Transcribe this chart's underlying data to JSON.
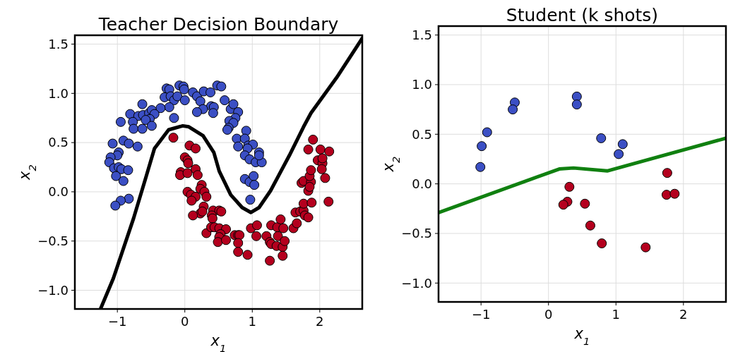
{
  "chart_data": [
    {
      "type": "scatter",
      "title": "Teacher Decision Boundary",
      "xlabel": "x$_{1}$",
      "ylabel": "x$_{2}$",
      "xlim": [
        -1.63,
        2.63
      ],
      "ylim": [
        -1.19,
        1.59
      ],
      "xticks": [
        {
          "value": -1,
          "label": "−1"
        },
        0,
        1,
        2
      ],
      "yticks": [
        {
          "value": -1,
          "label": "−1.0"
        },
        {
          "value": -0.5,
          "label": "−0.5"
        },
        {
          "value": 0,
          "label": "0.0"
        },
        {
          "value": 0.5,
          "label": "0.5"
        },
        {
          "value": 1,
          "label": "1.0"
        },
        {
          "value": 1.5,
          "label": "1.5"
        }
      ],
      "grid": true,
      "series": [
        {
          "marker": "circle",
          "color": "#3b4fc4",
          "x": [
            -0.27,
            -0.23,
            -0.08,
            -0.02,
            -0.01,
            -0.3,
            -0.21,
            -0.16,
            -0.11,
            0.0,
            0.12,
            0.18,
            0.23,
            0.28,
            0.38,
            0.48,
            0.54,
            0.39,
            0.43,
            0.42,
            0.27,
            0.18,
            -0.23,
            -0.36,
            -0.63,
            -0.81,
            -0.69,
            -0.62,
            -0.53,
            -0.49,
            -0.45,
            -0.52,
            -0.58,
            -0.77,
            -0.95,
            -0.76,
            -0.63,
            -0.49,
            -0.16,
            -1.07,
            -0.91,
            -0.83,
            -0.7,
            -0.98,
            -1.0,
            -1.1,
            -1.12,
            -1.05,
            -0.98,
            -0.94,
            -0.84,
            -1.02,
            -0.91,
            -0.83,
            -0.95,
            -1.03,
            0.59,
            0.68,
            0.72,
            0.79,
            0.75,
            0.66,
            0.72,
            0.65,
            0.63,
            0.91,
            0.77,
            0.89,
            0.79,
            0.94,
            1.01,
            0.93,
            0.89,
            0.96,
            1.05,
            1.14,
            1.1,
            1.1,
            0.89,
            0.96,
            1.02,
            1.03,
            0.97
          ],
          "values": [
            1.05,
            1.04,
            1.08,
            1.07,
            1.04,
            0.96,
            0.97,
            0.93,
            0.97,
            0.93,
            1.01,
            0.97,
            0.92,
            1.02,
            1.01,
            1.08,
            1.07,
            0.87,
            0.86,
            0.8,
            0.84,
            0.81,
            0.86,
            0.85,
            0.89,
            0.79,
            0.77,
            0.78,
            0.8,
            0.83,
            0.79,
            0.74,
            0.73,
            0.71,
            0.71,
            0.64,
            0.64,
            0.67,
            0.75,
            0.49,
            0.52,
            0.49,
            0.46,
            0.4,
            0.37,
            0.35,
            0.3,
            0.24,
            0.25,
            0.23,
            0.22,
            0.16,
            0.11,
            -0.07,
            -0.09,
            -0.14,
            0.93,
            0.84,
            0.89,
            0.81,
            0.75,
            0.72,
            0.7,
            0.65,
            0.63,
            0.62,
            0.54,
            0.54,
            0.46,
            0.47,
            0.48,
            0.44,
            0.37,
            0.33,
            0.3,
            0.3,
            0.4,
            0.37,
            0.13,
            0.1,
            0.16,
            0.07,
            -0.08
          ]
        },
        {
          "marker": "circle",
          "color": "#b4001e",
          "x": [
            -0.17,
            0.07,
            0.16,
            0.0,
            0.04,
            0.05,
            -0.06,
            -0.07,
            0.04,
            0.16,
            0.19,
            0.25,
            0.23,
            0.29,
            0.32,
            0.04,
            0.09,
            0.16,
            0.1,
            0.28,
            0.23,
            0.26,
            0.12,
            0.42,
            0.51,
            0.54,
            0.4,
            0.41,
            0.32,
            0.39,
            0.44,
            0.51,
            0.61,
            0.53,
            0.51,
            0.49,
            0.61,
            0.74,
            0.79,
            0.81,
            0.79,
            0.79,
            0.93,
            0.98,
            1.07,
            1.06,
            1.21,
            1.28,
            1.37,
            1.42,
            1.46,
            1.38,
            1.26,
            1.28,
            1.36,
            1.45,
            1.48,
            1.45,
            1.26,
            1.61,
            1.66,
            1.64,
            1.71,
            1.76,
            1.78,
            1.83,
            1.76,
            1.88,
            1.73,
            1.76,
            1.87,
            1.85,
            1.83,
            1.87,
            1.83,
            1.9,
            2.01,
            1.97,
            2.04,
            2.03,
            2.08,
            2.14,
            2.04,
            1.85,
            2.13
          ],
          "values": [
            0.55,
            0.47,
            0.44,
            0.35,
            0.32,
            0.29,
            0.2,
            0.17,
            0.19,
            0.23,
            0.17,
            0.07,
            0.03,
            0.0,
            -0.05,
            0.0,
            -0.03,
            -0.05,
            -0.09,
            -0.15,
            -0.22,
            -0.2,
            -0.24,
            -0.19,
            -0.19,
            -0.2,
            -0.24,
            -0.27,
            -0.42,
            -0.36,
            -0.36,
            -0.37,
            -0.38,
            -0.43,
            -0.46,
            -0.51,
            -0.49,
            -0.44,
            -0.44,
            -0.44,
            -0.52,
            -0.61,
            -0.64,
            -0.37,
            -0.34,
            -0.45,
            -0.45,
            -0.34,
            -0.36,
            -0.28,
            -0.37,
            -0.45,
            -0.51,
            -0.53,
            -0.55,
            -0.56,
            -0.5,
            -0.65,
            -0.7,
            -0.37,
            -0.32,
            -0.21,
            -0.2,
            -0.19,
            -0.24,
            -0.26,
            -0.12,
            -0.11,
            0.09,
            0.11,
            0.1,
            0.16,
            0.01,
            0.22,
            0.43,
            0.53,
            0.43,
            0.32,
            0.29,
            0.23,
            0.14,
            0.41,
            0.34,
            0.05,
            -0.1
          ]
        },
        {
          "type": "line",
          "color": "#000000",
          "x": [
            -1.25,
            -1.06,
            -0.76,
            -0.58,
            -0.45,
            -0.24,
            -0.03,
            0.06,
            0.27,
            0.43,
            0.51,
            0.68,
            0.85,
            0.98,
            1.1,
            1.27,
            1.55,
            1.76,
            1.87,
            2.25,
            2.63
          ],
          "values": [
            -1.19,
            -0.88,
            -0.27,
            0.14,
            0.44,
            0.63,
            0.67,
            0.66,
            0.57,
            0.4,
            0.21,
            -0.03,
            -0.16,
            -0.21,
            -0.16,
            0.01,
            0.37,
            0.66,
            0.8,
            1.16,
            1.56
          ]
        }
      ]
    },
    {
      "type": "scatter",
      "title": "Student (k shots)",
      "xlabel": "x$_{1}$",
      "ylabel": "x$_{2}$",
      "xlim": [
        -1.63,
        2.63
      ],
      "ylim": [
        -1.19,
        1.59
      ],
      "xticks": [
        {
          "value": -1,
          "label": "−1"
        },
        0,
        1,
        2
      ],
      "yticks": [
        {
          "value": -1,
          "label": "−1.0"
        },
        {
          "value": -0.5,
          "label": "−0.5"
        },
        {
          "value": 0,
          "label": "0.0"
        },
        {
          "value": 0.5,
          "label": "0.5"
        },
        {
          "value": 1,
          "label": "1.0"
        },
        {
          "value": 1.5,
          "label": "1.5"
        }
      ],
      "grid": true,
      "series": [
        {
          "marker": "circle",
          "color": "#3b4fc4",
          "x": [
            -0.5,
            -0.53,
            -0.91,
            -0.99,
            -1.01,
            0.42,
            0.42,
            0.78,
            1.1,
            1.04
          ],
          "values": [
            0.82,
            0.75,
            0.52,
            0.38,
            0.17,
            0.88,
            0.8,
            0.46,
            0.4,
            0.3
          ]
        },
        {
          "marker": "circle",
          "color": "#b4001e",
          "x": [
            0.31,
            0.28,
            0.22,
            0.54,
            0.62,
            0.79,
            1.44,
            1.76,
            1.75,
            1.87
          ],
          "values": [
            -0.03,
            -0.18,
            -0.21,
            -0.2,
            -0.42,
            -0.6,
            -0.64,
            0.11,
            -0.11,
            -0.1
          ]
        },
        {
          "type": "line",
          "color": "#108010",
          "x": [
            -1.63,
            0.16,
            0.37,
            0.87,
            2.63
          ],
          "values": [
            -0.29,
            0.15,
            0.16,
            0.13,
            0.46
          ]
        }
      ]
    }
  ]
}
